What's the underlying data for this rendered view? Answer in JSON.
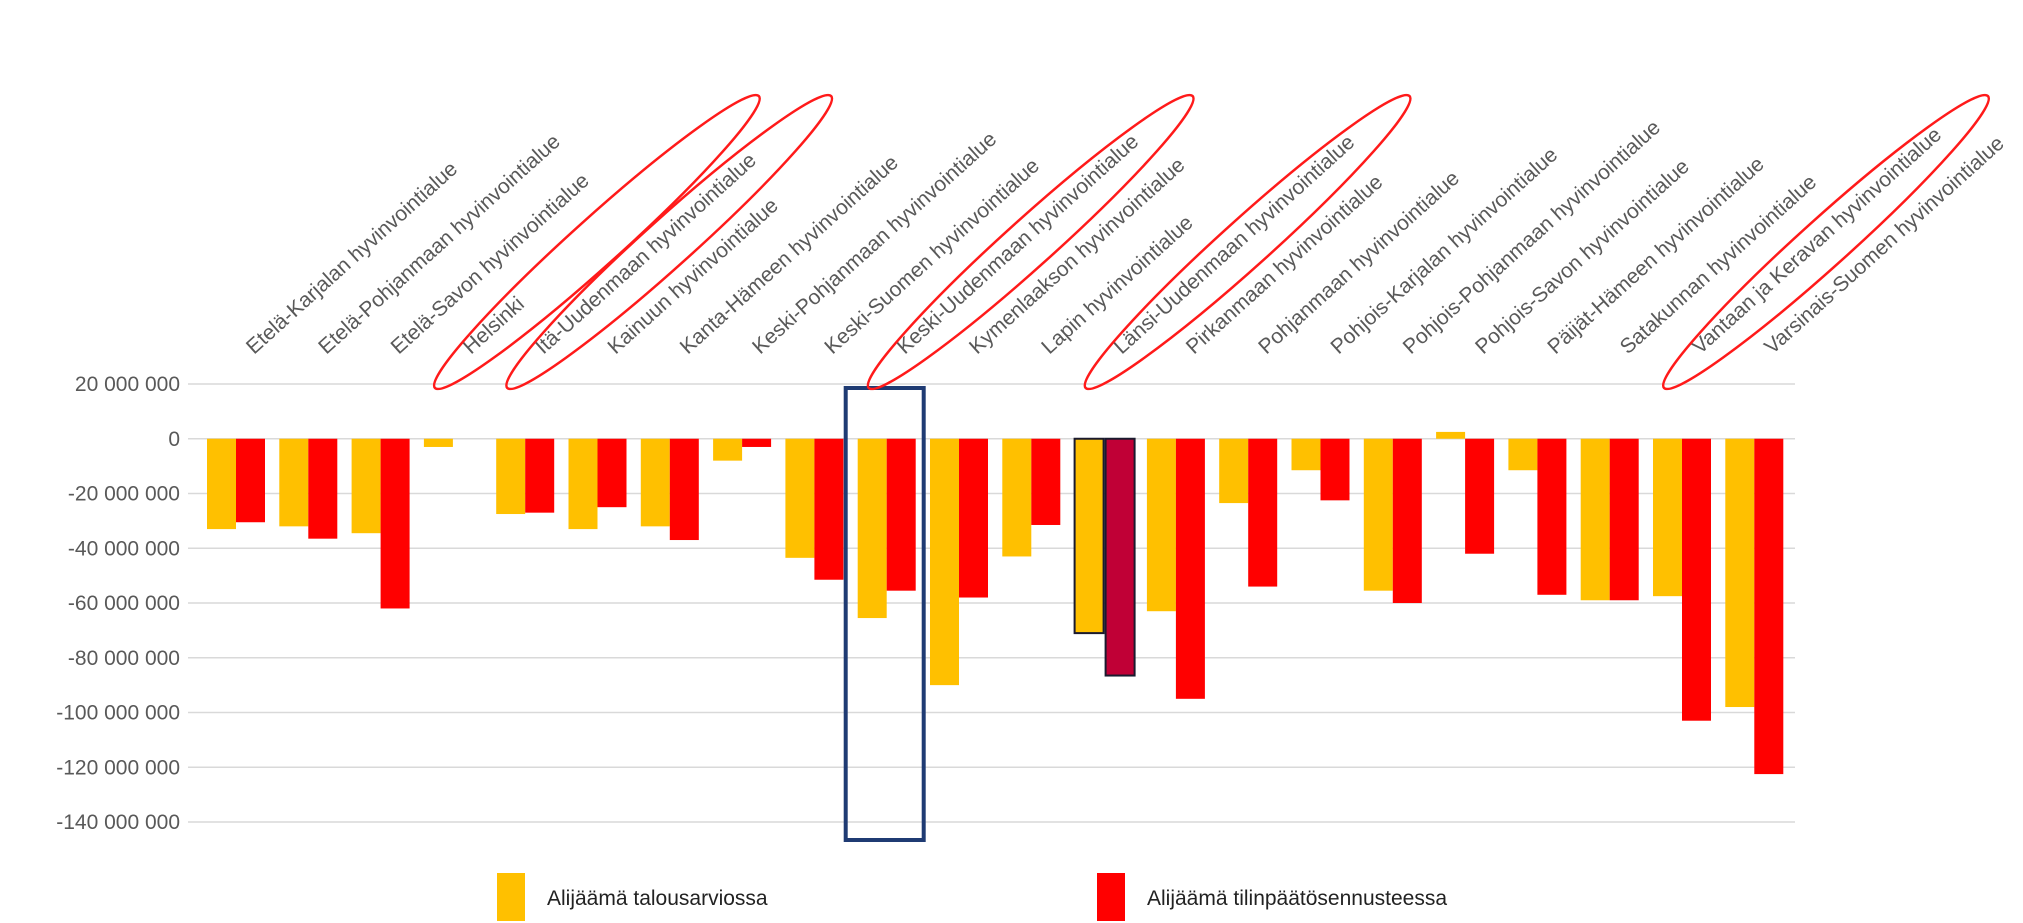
{
  "chart_data": {
    "type": "bar",
    "categories": [
      "Etelä-Karjalan hyvinvointialue",
      "Etelä-Pohjanmaan hyvinvointialue",
      "Etelä-Savon hyvinvointialue",
      "Helsinki",
      "Itä-Uudenmaan hyvinvointialue",
      "Kainuun hyvinvointialue",
      "Kanta-Hämeen hyvinvointialue",
      "Keski-Pohjanmaan hyvinvointialue",
      "Keski-Suomen hyvinvointialue",
      "Keski-Uudenmaan hyvinvointialue",
      "Kymenlaakson hyvinvointialue",
      "Lapin hyvinvointialue",
      "Länsi-Uudenmaan hyvinvointialue",
      "Pirkanmaan hyvinvointialue",
      "Pohjanmaan hyvinvointialue",
      "Pohjois-Karjalan hyvinvointialue",
      "Pohjois-Pohjanmaan hyvinvointialue",
      "Pohjois-Savon hyvinvointialue",
      "Päijät-Hämeen hyvinvointialue",
      "Satakunnan hyvinvointialue",
      "Vantaan ja Keravan hyvinvointialue",
      "Varsinais-Suomen hyvinvointialue"
    ],
    "series": [
      {
        "name": "Alijäämä talousarviossa",
        "color": "#FFC000",
        "values": [
          -33000000,
          -32000000,
          -34500000,
          -3000000,
          -27500000,
          -33000000,
          -32000000,
          -8000000,
          -43500000,
          -65500000,
          -90000000,
          -43000000,
          -71000000,
          -63000000,
          -23500000,
          -11500000,
          -55500000,
          2500000,
          -11500000,
          -59000000,
          -57500000,
          -98000000
        ]
      },
      {
        "name": "Alijäämä tilinpäätösennusteessa",
        "color": "#FF0000",
        "values": [
          -30500000,
          -36500000,
          -62000000,
          null,
          -27000000,
          -25000000,
          -37000000,
          -3000000,
          -51500000,
          -55500000,
          -58000000,
          -31500000,
          -86500000,
          -95000000,
          -54000000,
          -22500000,
          -60000000,
          -42000000,
          -57000000,
          -59000000,
          -103000000,
          -122500000
        ]
      }
    ],
    "y_ticks": [
      "20 000 000",
      "0",
      "-20 000 000",
      "-40 000 000",
      "-60 000 000",
      "-80 000 000",
      "-100 000 000",
      "-120 000 000",
      "-140 000 000"
    ],
    "ylim": [
      -140000000,
      20000000
    ],
    "grid": true,
    "legend_position": "bottom",
    "annotations": {
      "highlighted_group_color": "#C00036",
      "highlighted_group_index": 12,
      "boxed_category_index": 9,
      "circled_category_indices": [
        3,
        4,
        9,
        12,
        20
      ]
    }
  }
}
